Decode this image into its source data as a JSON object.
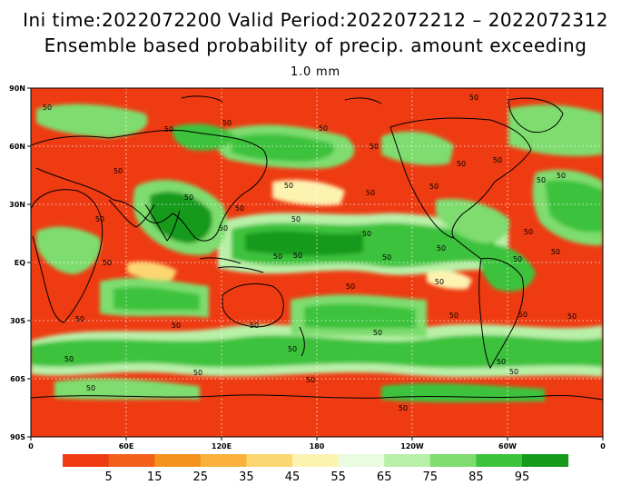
{
  "header": {
    "line1": "Ini time:2022072200   Valid Period:2022072212 – 2022072312",
    "line2": "Ensemble based probability of precip. amount exceeding",
    "line3": "1.0 mm"
  },
  "axes": {
    "lat_labels": [
      "90N",
      "60N",
      "30N",
      "EQ",
      "30S",
      "60S",
      "90S"
    ],
    "lon_labels": [
      "0",
      "60E",
      "120E",
      "180",
      "120W",
      "60W",
      "0"
    ]
  },
  "colorbar": {
    "colors": [
      "#ee3b12",
      "#f2601a",
      "#f6921e",
      "#fab23c",
      "#fcd671",
      "#fdf3b0",
      "#e9fce0",
      "#b9f0a8",
      "#7edd6e",
      "#3dc23c",
      "#169a1a"
    ],
    "labels": [
      "5",
      "15",
      "25",
      "35",
      "45",
      "55",
      "65",
      "75",
      "85",
      "95"
    ]
  },
  "contour_label_text": "50",
  "map_colors": {
    "background": "#ee3b12",
    "land_outline": "#000000",
    "grid": "#ffffff"
  }
}
